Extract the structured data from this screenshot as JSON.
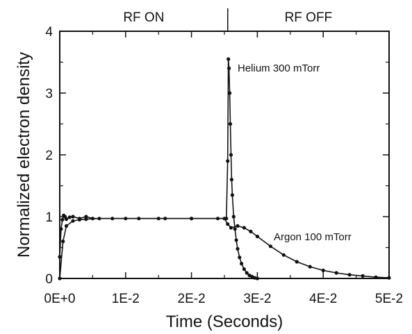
{
  "chart_data": {
    "type": "scatter",
    "title": "",
    "xlabel": "Time (Seconds)",
    "ylabel": "Normalized electron density",
    "xlim": [
      0,
      0.05
    ],
    "ylim": [
      0,
      4
    ],
    "x_ticks": [
      0,
      0.01,
      0.02,
      0.03,
      0.04,
      0.05
    ],
    "x_tick_labels": [
      "0E+0",
      "1E-2",
      "2E-2",
      "3E-2",
      "4E-2",
      "5E-2"
    ],
    "y_ticks": [
      0,
      1,
      2,
      3,
      4
    ],
    "y_tick_labels": [
      "0",
      "1",
      "2",
      "3",
      "4"
    ],
    "grid": false,
    "regions": [
      {
        "label": "RF ON",
        "x_range": [
          0,
          0.0255
        ]
      },
      {
        "label": "RF OFF",
        "x_range": [
          0.0255,
          0.05
        ]
      }
    ],
    "divider_x": 0.0255,
    "series": [
      {
        "name": "Helium 300 mTorr",
        "x": [
          0.0,
          0.0002,
          0.0004,
          0.0006,
          0.0008,
          0.001,
          0.0015,
          0.002,
          0.003,
          0.004,
          0.005,
          0.008,
          0.012,
          0.016,
          0.02,
          0.024,
          0.0253,
          0.0255,
          0.0256,
          0.0257,
          0.0258,
          0.0259,
          0.026,
          0.0261,
          0.0262,
          0.0264,
          0.0266,
          0.0268,
          0.027,
          0.0273,
          0.0276,
          0.028,
          0.0284,
          0.0288,
          0.0292,
          0.0296,
          0.03
        ],
        "y": [
          0.35,
          0.8,
          0.95,
          1.02,
          1.0,
          0.96,
          0.99,
          1.0,
          0.97,
          1.0,
          0.97,
          0.97,
          0.97,
          0.97,
          0.97,
          0.97,
          0.97,
          1.9,
          3.55,
          3.4,
          3.0,
          2.5,
          2.0,
          1.6,
          1.35,
          1.0,
          0.8,
          0.62,
          0.48,
          0.34,
          0.24,
          0.15,
          0.09,
          0.05,
          0.03,
          0.01,
          0.0
        ]
      },
      {
        "name": "Argon 100 mTorr",
        "x": [
          0.0,
          0.0005,
          0.001,
          0.002,
          0.003,
          0.004,
          0.006,
          0.01,
          0.015,
          0.02,
          0.025,
          0.0255,
          0.026,
          0.027,
          0.028,
          0.029,
          0.03,
          0.032,
          0.034,
          0.036,
          0.038,
          0.04,
          0.042,
          0.044,
          0.046,
          0.048,
          0.05
        ],
        "y": [
          0.0,
          0.6,
          0.85,
          0.93,
          0.95,
          0.96,
          0.97,
          0.97,
          0.97,
          0.97,
          0.97,
          0.88,
          0.82,
          0.85,
          0.82,
          0.76,
          0.68,
          0.52,
          0.38,
          0.27,
          0.19,
          0.13,
          0.09,
          0.06,
          0.04,
          0.02,
          0.01
        ]
      }
    ],
    "annotations": [
      {
        "text": "Helium 300 mTorr",
        "series": "Helium 300 mTorr"
      },
      {
        "text": "Argon 100 mTorr",
        "series": "Argon 100 mTorr"
      }
    ]
  }
}
